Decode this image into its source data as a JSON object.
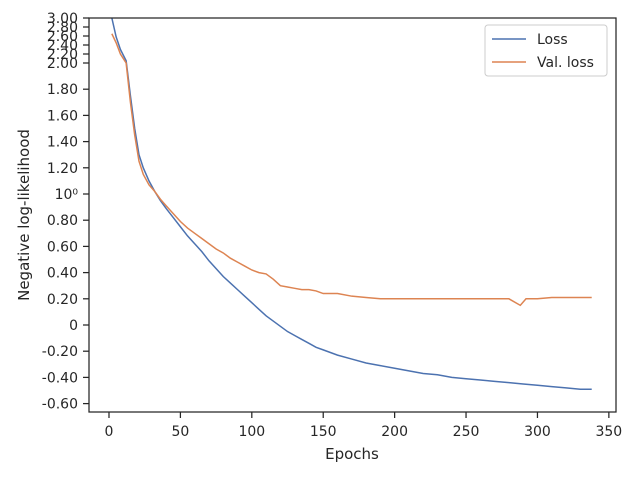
{
  "chart_data": {
    "type": "line",
    "title": "",
    "xlabel": "Epochs",
    "ylabel": "Negative log-likelihood",
    "xlim": [
      -14,
      355
    ],
    "x_ticks": [
      0,
      50,
      100,
      150,
      200,
      250,
      300,
      350
    ],
    "x_tick_labels": [
      "0",
      "50",
      "100",
      "150",
      "200",
      "250",
      "300",
      "350"
    ],
    "y_scale": "symlog-like (linear between -0.6 and 2.0, compressed above 2.0)",
    "y_ticks": [
      {
        "value": 3.0,
        "label": "3.00"
      },
      {
        "value": 2.8,
        "label": "2.80"
      },
      {
        "value": 2.6,
        "label": "2.60"
      },
      {
        "value": 2.4,
        "label": "2.40"
      },
      {
        "value": 2.2,
        "label": "2.20"
      },
      {
        "value": 2.0,
        "label": "2.00"
      },
      {
        "value": 1.8,
        "label": "1.80"
      },
      {
        "value": 1.6,
        "label": "1.60"
      },
      {
        "value": 1.4,
        "label": "1.40"
      },
      {
        "value": 1.2,
        "label": "1.20"
      },
      {
        "value": 1.0,
        "label": "10⁰"
      },
      {
        "value": 0.8,
        "label": "0.80"
      },
      {
        "value": 0.6,
        "label": "0.60"
      },
      {
        "value": 0.4,
        "label": "0.40"
      },
      {
        "value": 0.2,
        "label": "0.20"
      },
      {
        "value": 0.0,
        "label": "0"
      },
      {
        "value": -0.2,
        "label": "-0.20"
      },
      {
        "value": -0.4,
        "label": "-0.40"
      },
      {
        "value": -0.6,
        "label": "-0.60"
      }
    ],
    "grid": false,
    "legend_position": "top-right",
    "series": [
      {
        "name": "Loss",
        "color": "#4c72b0",
        "x": [
          2,
          5,
          8,
          12,
          15,
          18,
          21,
          24,
          28,
          32,
          36,
          40,
          45,
          50,
          55,
          60,
          65,
          70,
          75,
          80,
          85,
          90,
          95,
          100,
          105,
          110,
          115,
          120,
          125,
          130,
          135,
          140,
          145,
          150,
          160,
          170,
          180,
          190,
          200,
          210,
          220,
          230,
          240,
          250,
          260,
          270,
          280,
          290,
          300,
          310,
          320,
          330,
          338
        ],
        "y": [
          3.0,
          2.58,
          2.3,
          2.05,
          1.75,
          1.5,
          1.3,
          1.2,
          1.1,
          1.02,
          0.95,
          0.89,
          0.82,
          0.75,
          0.68,
          0.62,
          0.56,
          0.49,
          0.43,
          0.37,
          0.32,
          0.27,
          0.22,
          0.17,
          0.12,
          0.07,
          0.03,
          -0.01,
          -0.05,
          -0.08,
          -0.11,
          -0.14,
          -0.17,
          -0.19,
          -0.23,
          -0.26,
          -0.29,
          -0.31,
          -0.33,
          -0.35,
          -0.37,
          -0.38,
          -0.4,
          -0.41,
          -0.42,
          -0.43,
          -0.44,
          -0.45,
          -0.46,
          -0.47,
          -0.48,
          -0.49,
          -0.49
        ]
      },
      {
        "name": "Val. loss",
        "color": "#dd8452",
        "x": [
          2,
          5,
          8,
          12,
          15,
          18,
          21,
          24,
          28,
          32,
          36,
          40,
          45,
          50,
          55,
          60,
          65,
          70,
          75,
          80,
          85,
          90,
          95,
          100,
          105,
          110,
          115,
          120,
          125,
          130,
          135,
          140,
          145,
          150,
          160,
          170,
          180,
          190,
          200,
          210,
          220,
          230,
          240,
          250,
          260,
          270,
          280,
          288,
          292,
          300,
          310,
          320,
          330,
          338
        ],
        "y": [
          2.65,
          2.45,
          2.2,
          2.0,
          1.7,
          1.45,
          1.25,
          1.15,
          1.07,
          1.02,
          0.96,
          0.91,
          0.85,
          0.79,
          0.74,
          0.7,
          0.66,
          0.62,
          0.58,
          0.55,
          0.51,
          0.48,
          0.45,
          0.42,
          0.4,
          0.39,
          0.35,
          0.3,
          0.29,
          0.28,
          0.27,
          0.27,
          0.26,
          0.24,
          0.24,
          0.22,
          0.21,
          0.2,
          0.2,
          0.2,
          0.2,
          0.2,
          0.2,
          0.2,
          0.2,
          0.2,
          0.2,
          0.15,
          0.2,
          0.2,
          0.21,
          0.21,
          0.21,
          0.21
        ]
      }
    ]
  }
}
